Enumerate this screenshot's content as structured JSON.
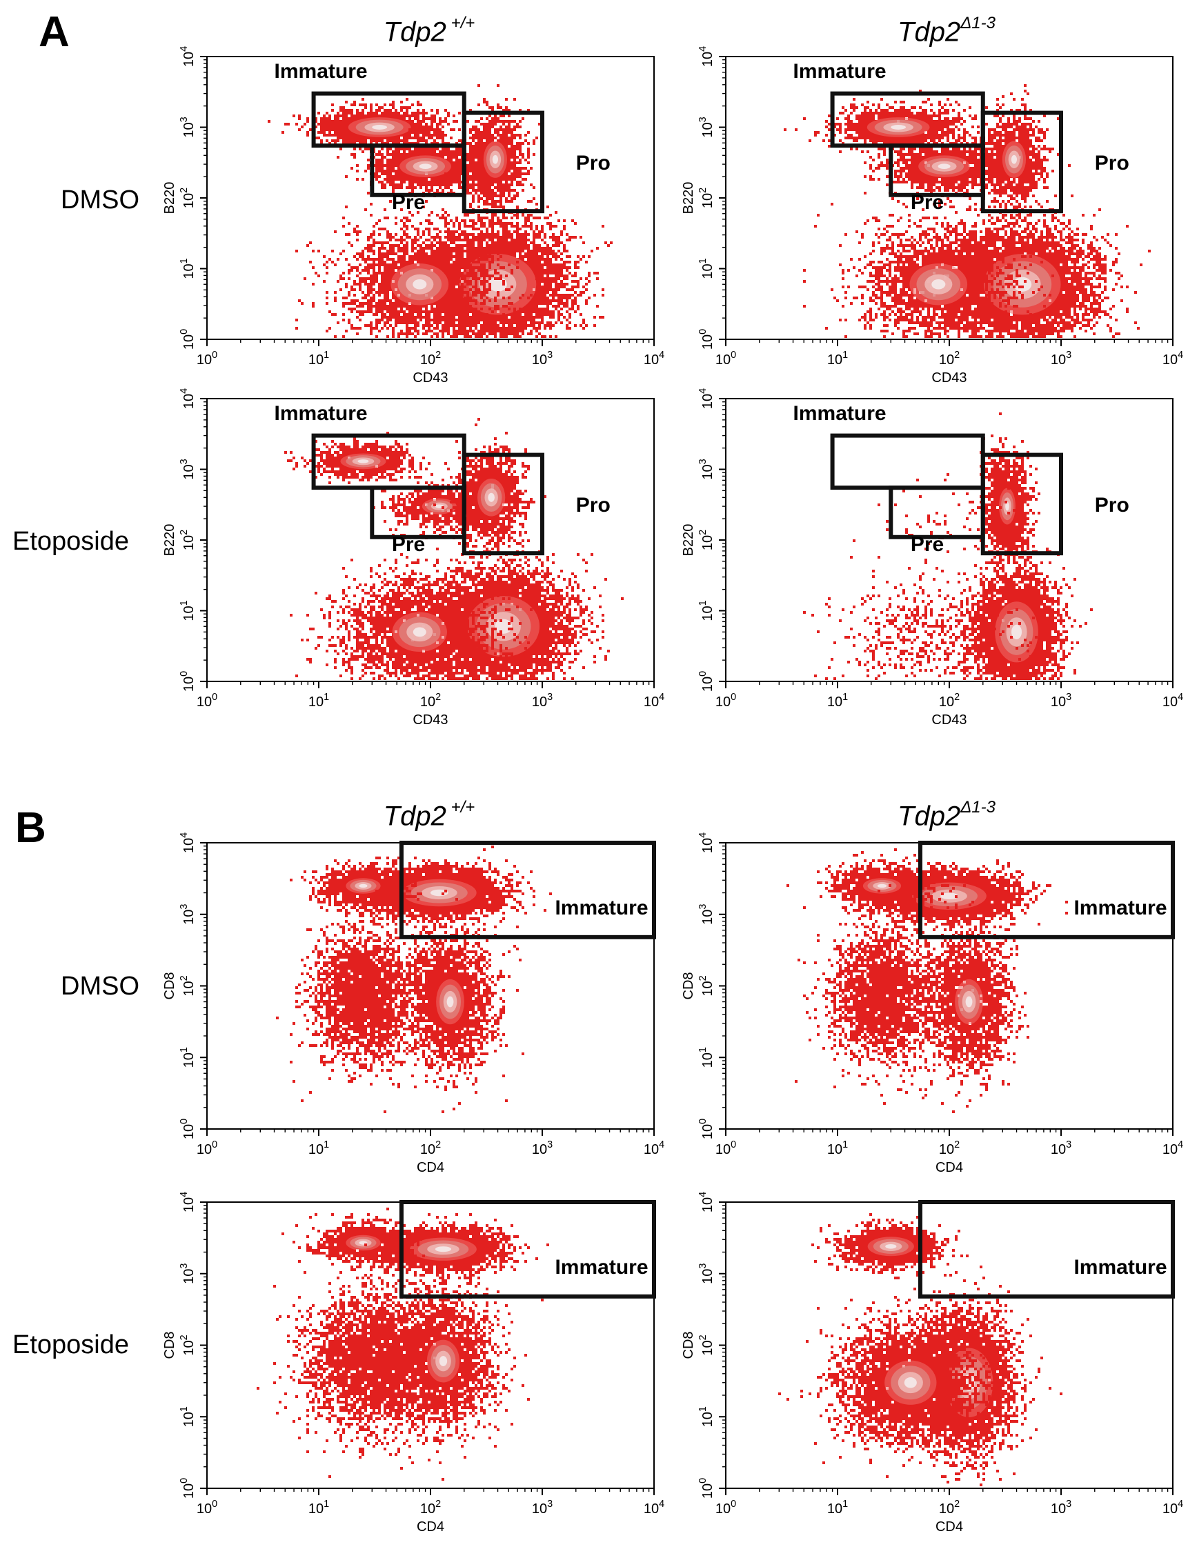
{
  "colors": {
    "dot": "#e2201f",
    "dot_light": "#ee6e6a",
    "core_mid": "#dd8a86",
    "core_light": "#eebbb8",
    "core_white": "#f3e8e8",
    "gate": "#111111"
  },
  "sections": [
    {
      "label": "A",
      "column_titles": [
        {
          "base": "Tdp2",
          "sup": " +/+"
        },
        {
          "base": "Tdp2",
          "sup": "Δ1-3"
        }
      ],
      "row_labels": [
        "DMSO",
        "Etoposide"
      ]
    },
    {
      "label": "B",
      "column_titles": [
        {
          "base": "Tdp2",
          "sup": " +/+"
        },
        {
          "base": "Tdp2",
          "sup": "Δ1-3"
        }
      ],
      "row_labels": [
        "DMSO",
        "Etoposide"
      ]
    }
  ],
  "chart_data": [
    {
      "type": "scatter",
      "section": "A",
      "row": "DMSO",
      "genotype": "Tdp2 +/+",
      "xlabel": "CD43",
      "ylabel": "B220",
      "x_ticks": [
        "10^0",
        "10^1",
        "10^2",
        "10^3",
        "10^4"
      ],
      "y_ticks": [
        "10^0",
        "10^1",
        "10^2",
        "10^3",
        "10^4"
      ],
      "log_scale": true,
      "xlim": [
        1,
        10000
      ],
      "ylim": [
        1,
        10000
      ],
      "gates": [
        {
          "name": "Immature",
          "x": [
            9,
            200
          ],
          "y": [
            550,
            3000
          ],
          "label_at": [
            4,
            5000
          ]
        },
        {
          "name": "Pre",
          "x": [
            30,
            200
          ],
          "y": [
            110,
            550
          ],
          "label_at": [
            45,
            70
          ]
        },
        {
          "name": "Pro",
          "x": [
            200,
            1000
          ],
          "y": [
            65,
            1600
          ],
          "label_at": [
            2000,
            250
          ]
        }
      ],
      "populations": [
        {
          "x": 400,
          "y": 6,
          "sx": 0.32,
          "sy": 0.4,
          "n": 5200,
          "core": 0.6
        },
        {
          "x": 80,
          "y": 6,
          "sx": 0.35,
          "sy": 0.4,
          "n": 2600,
          "core": 0.15
        },
        {
          "x": 35,
          "y": 1000,
          "sx": 0.28,
          "sy": 0.14,
          "n": 1500,
          "core": 0.5
        },
        {
          "x": 90,
          "y": 280,
          "sx": 0.24,
          "sy": 0.16,
          "n": 1500,
          "core": 0.45
        },
        {
          "x": 380,
          "y": 350,
          "sx": 0.13,
          "sy": 0.32,
          "n": 1300,
          "core": 0.25
        }
      ]
    },
    {
      "type": "scatter",
      "section": "A",
      "row": "DMSO",
      "genotype": "Tdp2Δ1-3",
      "xlabel": "CD43",
      "ylabel": "B220",
      "x_ticks": [
        "10^0",
        "10^1",
        "10^2",
        "10^3",
        "10^4"
      ],
      "y_ticks": [
        "10^0",
        "10^1",
        "10^2",
        "10^3",
        "10^4"
      ],
      "log_scale": true,
      "xlim": [
        1,
        10000
      ],
      "ylim": [
        1,
        10000
      ],
      "gates": [
        {
          "name": "Immature",
          "x": [
            9,
            200
          ],
          "y": [
            550,
            3000
          ],
          "label_at": [
            4,
            5000
          ]
        },
        {
          "name": "Pre",
          "x": [
            30,
            200
          ],
          "y": [
            110,
            550
          ],
          "label_at": [
            45,
            70
          ]
        },
        {
          "name": "Pro",
          "x": [
            200,
            1000
          ],
          "y": [
            65,
            1600
          ],
          "label_at": [
            2000,
            250
          ]
        }
      ],
      "populations": [
        {
          "x": 450,
          "y": 6,
          "sx": 0.32,
          "sy": 0.4,
          "n": 5200,
          "core": 0.6
        },
        {
          "x": 80,
          "y": 6,
          "sx": 0.35,
          "sy": 0.4,
          "n": 2200,
          "core": 0.15
        },
        {
          "x": 35,
          "y": 1000,
          "sx": 0.28,
          "sy": 0.14,
          "n": 1400,
          "core": 0.5
        },
        {
          "x": 90,
          "y": 280,
          "sx": 0.24,
          "sy": 0.16,
          "n": 1400,
          "core": 0.45
        },
        {
          "x": 380,
          "y": 350,
          "sx": 0.13,
          "sy": 0.32,
          "n": 1300,
          "core": 0.25
        }
      ]
    },
    {
      "type": "scatter",
      "section": "A",
      "row": "Etoposide",
      "genotype": "Tdp2 +/+",
      "xlabel": "CD43",
      "ylabel": "B220",
      "x_ticks": [
        "10^0",
        "10^1",
        "10^2",
        "10^3",
        "10^4"
      ],
      "y_ticks": [
        "10^0",
        "10^1",
        "10^2",
        "10^3",
        "10^4"
      ],
      "log_scale": true,
      "xlim": [
        1,
        10000
      ],
      "ylim": [
        1,
        10000
      ],
      "gates": [
        {
          "name": "Immature",
          "x": [
            9,
            200
          ],
          "y": [
            550,
            3000
          ],
          "label_at": [
            4,
            5000
          ]
        },
        {
          "name": "Pre",
          "x": [
            30,
            200
          ],
          "y": [
            110,
            550
          ],
          "label_at": [
            45,
            70
          ]
        },
        {
          "name": "Pro",
          "x": [
            200,
            1000
          ],
          "y": [
            65,
            1600
          ],
          "label_at": [
            2000,
            250
          ]
        }
      ],
      "populations": [
        {
          "x": 450,
          "y": 6,
          "sx": 0.3,
          "sy": 0.4,
          "n": 5000,
          "core": 0.6
        },
        {
          "x": 80,
          "y": 5,
          "sx": 0.35,
          "sy": 0.4,
          "n": 2600,
          "core": 0.1
        },
        {
          "x": 25,
          "y": 1300,
          "sx": 0.22,
          "sy": 0.12,
          "n": 900,
          "core": 0.4
        },
        {
          "x": 120,
          "y": 300,
          "sx": 0.22,
          "sy": 0.16,
          "n": 700,
          "core": 0.1
        },
        {
          "x": 350,
          "y": 400,
          "sx": 0.14,
          "sy": 0.3,
          "n": 1500,
          "core": 0.35
        }
      ]
    },
    {
      "type": "scatter",
      "section": "A",
      "row": "Etoposide",
      "genotype": "Tdp2Δ1-3",
      "xlabel": "CD43",
      "ylabel": "B220",
      "x_ticks": [
        "10^0",
        "10^1",
        "10^2",
        "10^3",
        "10^4"
      ],
      "y_ticks": [
        "10^0",
        "10^1",
        "10^2",
        "10^3",
        "10^4"
      ],
      "log_scale": true,
      "xlim": [
        1,
        10000
      ],
      "ylim": [
        1,
        10000
      ],
      "gates": [
        {
          "name": "Immature",
          "x": [
            9,
            200
          ],
          "y": [
            550,
            3000
          ],
          "label_at": [
            4,
            5000
          ]
        },
        {
          "name": "Pre",
          "x": [
            30,
            200
          ],
          "y": [
            110,
            550
          ],
          "label_at": [
            45,
            70
          ]
        },
        {
          "name": "Pro",
          "x": [
            200,
            1000
          ],
          "y": [
            65,
            1600
          ],
          "label_at": [
            2000,
            250
          ]
        }
      ],
      "populations": [
        {
          "x": 400,
          "y": 5,
          "sx": 0.18,
          "sy": 0.4,
          "n": 4000,
          "core": 0.6
        },
        {
          "x": 330,
          "y": 300,
          "sx": 0.1,
          "sy": 0.35,
          "n": 1400,
          "core": 0.15
        },
        {
          "x": 60,
          "y": 4,
          "sx": 0.4,
          "sy": 0.4,
          "n": 500,
          "core": 0
        },
        {
          "x": 90,
          "y": 150,
          "sx": 0.3,
          "sy": 0.3,
          "n": 60,
          "core": 0
        }
      ]
    },
    {
      "type": "scatter",
      "section": "B",
      "row": "DMSO",
      "genotype": "Tdp2 +/+",
      "xlabel": "CD4",
      "ylabel": "CD8",
      "x_ticks": [
        "10^0",
        "10^1",
        "10^2",
        "10^3",
        "10^4"
      ],
      "y_ticks": [
        "10^0",
        "10^1",
        "10^2",
        "10^3",
        "10^4"
      ],
      "log_scale": true,
      "xlim": [
        1,
        10000
      ],
      "ylim": [
        1,
        10000
      ],
      "gates": [
        {
          "name": "Immature",
          "x": [
            55,
            10000
          ],
          "y": [
            480,
            10000
          ],
          "label_at": [
            1300,
            1000
          ]
        }
      ],
      "populations": [
        {
          "x": 120,
          "y": 2000,
          "sx": 0.28,
          "sy": 0.16,
          "n": 3800,
          "core": 0.75
        },
        {
          "x": 25,
          "y": 2500,
          "sx": 0.2,
          "sy": 0.14,
          "n": 1000,
          "core": 0.2
        },
        {
          "x": 25,
          "y": 70,
          "sx": 0.22,
          "sy": 0.45,
          "n": 2400,
          "core": 0
        },
        {
          "x": 150,
          "y": 60,
          "sx": 0.18,
          "sy": 0.45,
          "n": 2400,
          "core": 0.1
        }
      ]
    },
    {
      "type": "scatter",
      "section": "B",
      "row": "DMSO",
      "genotype": "Tdp2Δ1-3",
      "xlabel": "CD4",
      "ylabel": "CD8",
      "x_ticks": [
        "10^0",
        "10^1",
        "10^2",
        "10^3",
        "10^4"
      ],
      "y_ticks": [
        "10^0",
        "10^1",
        "10^2",
        "10^3",
        "10^4"
      ],
      "log_scale": true,
      "xlim": [
        1,
        10000
      ],
      "ylim": [
        1,
        10000
      ],
      "gates": [
        {
          "name": "Immature",
          "x": [
            55,
            10000
          ],
          "y": [
            480,
            10000
          ],
          "label_at": [
            1300,
            1000
          ]
        }
      ],
      "populations": [
        {
          "x": 100,
          "y": 1800,
          "sx": 0.28,
          "sy": 0.16,
          "n": 3800,
          "core": 0.75
        },
        {
          "x": 25,
          "y": 2500,
          "sx": 0.22,
          "sy": 0.14,
          "n": 1100,
          "core": 0.2
        },
        {
          "x": 25,
          "y": 70,
          "sx": 0.22,
          "sy": 0.45,
          "n": 2200,
          "core": 0
        },
        {
          "x": 150,
          "y": 60,
          "sx": 0.18,
          "sy": 0.45,
          "n": 2200,
          "core": 0.1
        }
      ]
    },
    {
      "type": "scatter",
      "section": "B",
      "row": "Etoposide",
      "genotype": "Tdp2 +/+",
      "xlabel": "CD4",
      "ylabel": "CD8",
      "x_ticks": [
        "10^0",
        "10^1",
        "10^2",
        "10^3",
        "10^4"
      ],
      "y_ticks": [
        "10^0",
        "10^1",
        "10^2",
        "10^3",
        "10^4"
      ],
      "log_scale": true,
      "xlim": [
        1,
        10000
      ],
      "ylim": [
        1,
        10000
      ],
      "gates": [
        {
          "name": "Immature",
          "x": [
            55,
            10000
          ],
          "y": [
            480,
            10000
          ],
          "label_at": [
            1300,
            1000
          ]
        }
      ],
      "populations": [
        {
          "x": 130,
          "y": 2200,
          "sx": 0.26,
          "sy": 0.14,
          "n": 2800,
          "core": 0.7
        },
        {
          "x": 25,
          "y": 2700,
          "sx": 0.2,
          "sy": 0.14,
          "n": 1000,
          "core": 0.2
        },
        {
          "x": 30,
          "y": 60,
          "sx": 0.28,
          "sy": 0.45,
          "n": 3000,
          "core": 0
        },
        {
          "x": 130,
          "y": 60,
          "sx": 0.22,
          "sy": 0.45,
          "n": 2400,
          "core": 0.05
        }
      ]
    },
    {
      "type": "scatter",
      "section": "B",
      "row": "Etoposide",
      "genotype": "Tdp2Δ1-3",
      "xlabel": "CD4",
      "ylabel": "CD8",
      "x_ticks": [
        "10^0",
        "10^1",
        "10^2",
        "10^3",
        "10^4"
      ],
      "y_ticks": [
        "10^0",
        "10^1",
        "10^2",
        "10^3",
        "10^4"
      ],
      "log_scale": true,
      "xlim": [
        1,
        10000
      ],
      "ylim": [
        1,
        10000
      ],
      "gates": [
        {
          "name": "Immature",
          "x": [
            55,
            10000
          ],
          "y": [
            480,
            10000
          ],
          "label_at": [
            1300,
            1000
          ]
        }
      ],
      "populations": [
        {
          "x": 30,
          "y": 2400,
          "sx": 0.2,
          "sy": 0.13,
          "n": 1800,
          "core": 0.55
        },
        {
          "x": 150,
          "y": 30,
          "sx": 0.2,
          "sy": 0.45,
          "n": 3800,
          "core": 0.6
        },
        {
          "x": 45,
          "y": 30,
          "sx": 0.3,
          "sy": 0.4,
          "n": 3600,
          "core": 0.2
        }
      ]
    }
  ]
}
